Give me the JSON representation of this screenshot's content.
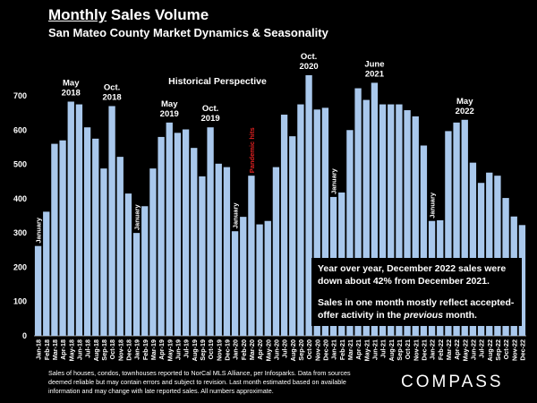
{
  "header": {
    "title_underlined": "Monthly",
    "title_rest": " Sales Volume",
    "subtitle": "San Mateo County Market Dynamics & Seasonality"
  },
  "chart_data": {
    "type": "bar",
    "title": "Historical Perspective",
    "xlabel": "",
    "ylabel": "",
    "ylim": [
      0,
      760
    ],
    "yticks": [
      0,
      100,
      200,
      300,
      400,
      500,
      600,
      700
    ],
    "grid": false,
    "bar_color": "#a9c8ec",
    "categories": [
      "Jan-18",
      "Feb-18",
      "Mar-18",
      "Apr-18",
      "May-18",
      "Jun-18",
      "Jul-18",
      "Aug-18",
      "Sep-18",
      "Oct-18",
      "Nov-18",
      "Dec-18",
      "Jan-19",
      "Feb-19",
      "Mar-19",
      "Apr-19",
      "May-19",
      "Jun-19",
      "Jul-19",
      "Aug-19",
      "Sep-19",
      "Oct-19",
      "Nov-19",
      "Dec-19",
      "Jan-20",
      "Feb-20",
      "Mar-20",
      "Apr-20",
      "May-20",
      "Jun-20",
      "Jul-20",
      "Aug-20",
      "Sep-20",
      "Oct-20",
      "Nov-20",
      "Dec-20",
      "Jan-21",
      "Feb-21",
      "Mar-21",
      "Apr-21",
      "May-21",
      "Jun-21",
      "Jul-21",
      "Aug-21",
      "Sep-21",
      "Oct-21",
      "Nov-21",
      "Dec-21",
      "Jan-22",
      "Feb-22",
      "Mar-22",
      "Apr-22",
      "May-22",
      "Jun-22",
      "Jul-22",
      "Aug-22",
      "Sep-22",
      "Oct-22",
      "Nov-22",
      "Dec-22"
    ],
    "values": [
      262,
      362,
      560,
      570,
      683,
      675,
      608,
      575,
      488,
      670,
      522,
      415,
      300,
      378,
      488,
      580,
      622,
      592,
      602,
      548,
      465,
      608,
      502,
      492,
      305,
      347,
      467,
      325,
      335,
      492,
      645,
      582,
      675,
      760,
      660,
      665,
      405,
      418,
      600,
      722,
      688,
      738,
      675,
      675,
      675,
      658,
      640,
      555,
      335,
      337,
      597,
      622,
      630,
      505,
      446,
      476,
      467,
      402,
      348,
      323
    ],
    "annotations": [
      {
        "label": [
          "May",
          "2018"
        ],
        "bar": 4
      },
      {
        "label": [
          "Oct.",
          "2018"
        ],
        "bar": 9
      },
      {
        "label": [
          "May",
          "2019"
        ],
        "bar": 16
      },
      {
        "label": [
          "Oct.",
          "2019"
        ],
        "bar": 21
      },
      {
        "label": [
          "Oct.",
          "2020"
        ],
        "bar": 33
      },
      {
        "label": [
          "June",
          "2021"
        ],
        "bar": 41
      },
      {
        "label": [
          "May",
          "2022"
        ],
        "bar": 52
      }
    ],
    "bar_labels": [
      {
        "text": "January",
        "bar": 0
      },
      {
        "text": "January",
        "bar": 12
      },
      {
        "text": "January",
        "bar": 24
      },
      {
        "text": "January",
        "bar": 36
      },
      {
        "text": "January",
        "bar": 48
      },
      {
        "text": "Pandemic hits",
        "bar": 26,
        "color": "#e02020"
      }
    ]
  },
  "note": {
    "line1": "Year over year, December 2022 sales were down about 42% from December 2021.",
    "line2_a": "Sales in one month mostly reflect accepted-offer activity in the ",
    "line2_em": "previous",
    "line2_b": " month."
  },
  "footer": {
    "text": "Sales of houses, condos, townhouses reported to NorCal MLS Alliance, per Infosparks. Data from sources deemed reliable but may contain errors and subject to revision. Last month estimated based on available information and may change with late reported sales. All numbers approximate."
  },
  "brand": {
    "logo": "COMPASS"
  }
}
